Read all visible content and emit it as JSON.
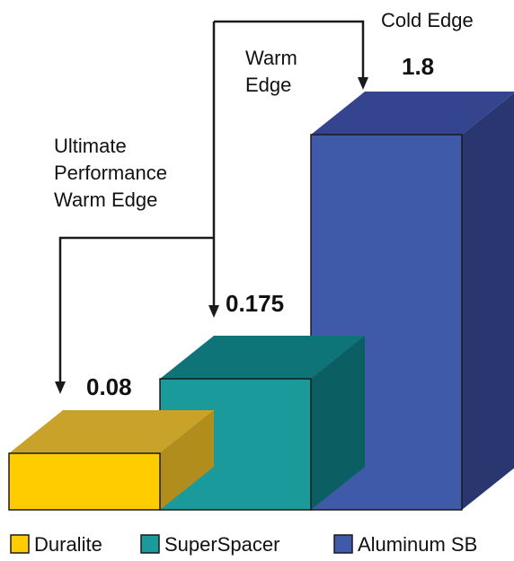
{
  "chart_data": {
    "type": "bar",
    "style": "3d",
    "categories": [
      "Duralite",
      "SuperSpacer",
      "Aluminum SB"
    ],
    "values": [
      0.08,
      0.175,
      1.8
    ],
    "value_labels": [
      "0.08",
      "0.175",
      "1.8"
    ],
    "series_colors": {
      "front": [
        "#ffcc00",
        "#1a9a9a",
        "#3f5aa9"
      ],
      "top": [
        "#c9a22a",
        "#0e7478",
        "#34448e"
      ],
      "side": [
        "#b08d1c",
        "#0b5f62",
        "#2a3670"
      ]
    },
    "annotations": [
      {
        "target": 0,
        "lines": [
          "Ultimate",
          "Performance",
          "Warm Edge"
        ]
      },
      {
        "target": 1,
        "lines": [
          "Warm",
          "Edge"
        ]
      },
      {
        "target": 2,
        "lines": [
          "Cold Edge"
        ]
      }
    ],
    "legend": {
      "position": "bottom",
      "items": [
        "Duralite",
        "SuperSpacer",
        "Aluminum SB"
      ]
    },
    "xlabel": "",
    "ylabel": "",
    "grid": false
  }
}
